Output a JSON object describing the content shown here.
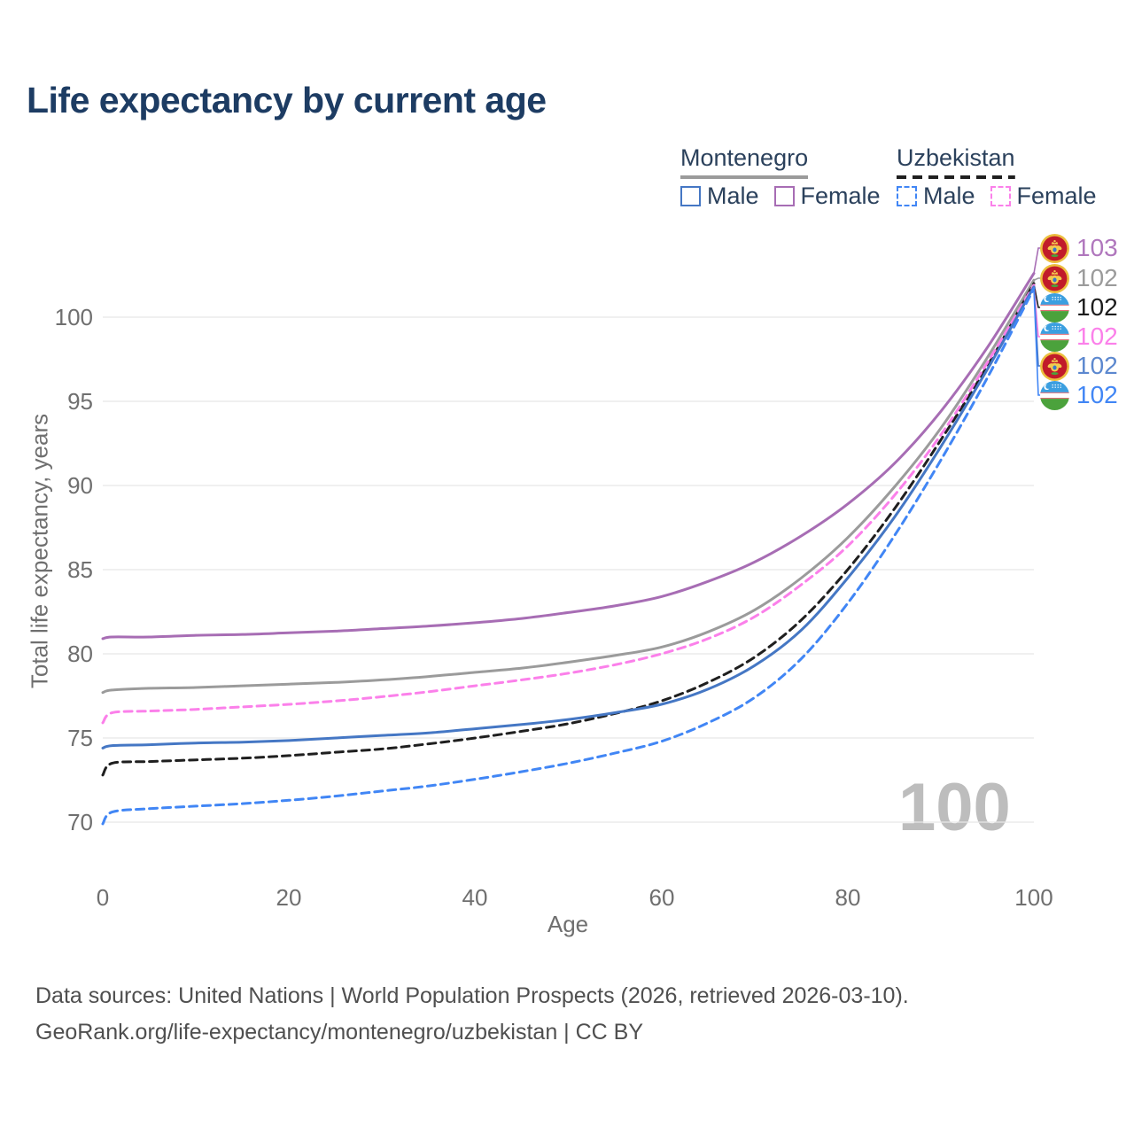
{
  "title": "Life expectancy by current age",
  "legend": {
    "groups": [
      {
        "label": "Montenegro",
        "line_style": "solid",
        "line_color": "#9b9b9b",
        "items": [
          {
            "label": "Male",
            "color": "#4577c4",
            "dashed": false
          },
          {
            "label": "Female",
            "color": "#a76db4",
            "dashed": false
          }
        ]
      },
      {
        "label": "Uzbekistan",
        "line_style": "dashed",
        "line_color": "#1f1f1f",
        "items": [
          {
            "label": "Male",
            "color": "#4186f5",
            "dashed": true
          },
          {
            "label": "Female",
            "color": "#fb80ea",
            "dashed": true
          }
        ]
      }
    ]
  },
  "chart_data": {
    "type": "line",
    "title": "Life expectancy by current age",
    "xlabel": "Age",
    "ylabel": "Total life expectancy, years",
    "xlim": [
      0,
      100
    ],
    "ylim": [
      68.5,
      103.5
    ],
    "x_ticks": [
      0,
      20,
      40,
      60,
      80,
      100
    ],
    "y_ticks": [
      70,
      75,
      80,
      85,
      90,
      95,
      100
    ],
    "grid": "horizontal-only",
    "legend_position": "top-right",
    "x_ages": [
      0,
      1,
      5,
      10,
      15,
      20,
      25,
      30,
      35,
      40,
      45,
      50,
      55,
      60,
      65,
      70,
      75,
      80,
      85,
      90,
      95,
      100
    ],
    "series": [
      {
        "name": "Montenegro Female",
        "country": "Montenegro",
        "sex": "Female",
        "color": "#a76db4",
        "dash": "solid",
        "end_label": "103",
        "values": [
          80.9,
          81.0,
          81.0,
          81.1,
          81.15,
          81.25,
          81.35,
          81.5,
          81.65,
          81.85,
          82.1,
          82.45,
          82.85,
          83.4,
          84.3,
          85.45,
          87.0,
          88.9,
          91.3,
          94.4,
          98.2,
          102.6
        ]
      },
      {
        "name": "Montenegro Total",
        "country": "Montenegro",
        "sex": "Both",
        "color": "#9b9b9b",
        "dash": "solid",
        "end_label": "102",
        "values": [
          77.7,
          77.85,
          77.95,
          78.0,
          78.1,
          78.2,
          78.3,
          78.45,
          78.65,
          78.9,
          79.15,
          79.5,
          79.9,
          80.4,
          81.3,
          82.6,
          84.5,
          86.9,
          89.9,
          93.4,
          97.6,
          102.2
        ]
      },
      {
        "name": "Uzbekistan Total",
        "country": "Uzbekistan",
        "sex": "Both",
        "color": "#1f1f1f",
        "dash": "dashed",
        "end_label": "102",
        "values": [
          72.8,
          73.5,
          73.6,
          73.7,
          73.8,
          73.95,
          74.15,
          74.35,
          74.65,
          75.0,
          75.4,
          75.85,
          76.45,
          77.2,
          78.3,
          79.8,
          82.0,
          85.0,
          88.6,
          92.7,
          97.1,
          102.0
        ]
      },
      {
        "name": "Uzbekistan Female",
        "country": "Uzbekistan",
        "sex": "Female",
        "color": "#fb80ea",
        "dash": "dashed",
        "end_label": "102",
        "values": [
          75.9,
          76.5,
          76.6,
          76.7,
          76.85,
          77.0,
          77.2,
          77.45,
          77.75,
          78.1,
          78.45,
          78.85,
          79.35,
          80.0,
          80.9,
          82.2,
          84.1,
          86.4,
          89.4,
          93.0,
          97.3,
          101.9
        ]
      },
      {
        "name": "Montenegro Male",
        "country": "Montenegro",
        "sex": "Male",
        "color": "#4577c4",
        "dash": "solid",
        "end_label": "102",
        "values": [
          74.4,
          74.55,
          74.6,
          74.7,
          74.75,
          74.85,
          75.0,
          75.15,
          75.3,
          75.55,
          75.8,
          76.1,
          76.5,
          77.0,
          77.9,
          79.3,
          81.4,
          84.5,
          88.1,
          92.3,
          96.9,
          101.8
        ]
      },
      {
        "name": "Uzbekistan Male",
        "country": "Uzbekistan",
        "sex": "Male",
        "color": "#4186f5",
        "dash": "dashed",
        "end_label": "102",
        "values": [
          69.9,
          70.6,
          70.8,
          70.95,
          71.1,
          71.3,
          71.55,
          71.85,
          72.15,
          72.55,
          73.0,
          73.5,
          74.1,
          74.8,
          75.9,
          77.4,
          79.7,
          83.0,
          87.0,
          91.5,
          96.4,
          101.7
        ]
      }
    ]
  },
  "callouts": [
    {
      "flag": "me",
      "country": "Montenegro",
      "value": "103",
      "color": "#b077bd"
    },
    {
      "flag": "me",
      "country": "Montenegro",
      "value": "102",
      "color": "#9b9b9b"
    },
    {
      "flag": "uz",
      "country": "Uzbekistan",
      "value": "102",
      "color": "#1c1c1c"
    },
    {
      "flag": "uz",
      "country": "Uzbekistan",
      "value": "102",
      "color": "#fb80ea"
    },
    {
      "flag": "me",
      "country": "Montenegro",
      "value": "102",
      "color": "#5c88cf"
    },
    {
      "flag": "uz",
      "country": "Uzbekistan",
      "value": "102",
      "color": "#4186f5"
    }
  ],
  "watermark": "100",
  "footer": {
    "line1": "Data sources: United Nations | World Population Prospects (2026, retrieved 2026-03-10).",
    "line2": "GeoRank.org/life-expectancy/montenegro/uzbekistan | CC BY"
  }
}
